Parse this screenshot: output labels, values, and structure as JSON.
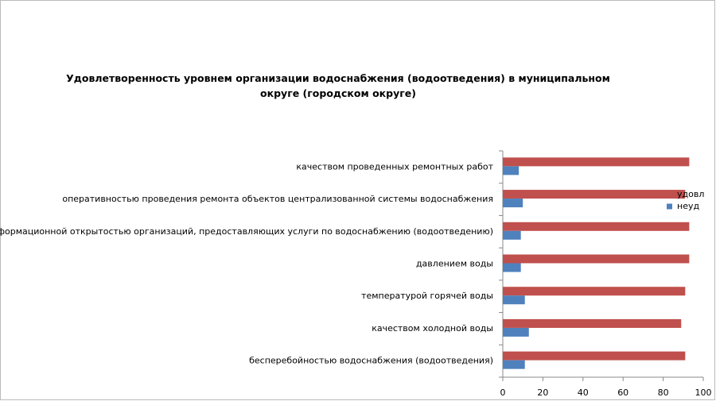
{
  "chart_data": {
    "type": "bar",
    "orientation": "horizontal",
    "title": "Удовлетворенность уровнем организации водоснабжения (водоотведения) в муниципальном округе (городском округе)",
    "categories": [
      "качеством проведенных ремонтных работ",
      "оперативностью проведения ремонта объектов централизованной системы водоснабжения",
      "информационной открытостью организаций, предоставляющих услуги по водоснабжению (водоотведению)",
      "давлением воды",
      "температурой горячей воды",
      "качеством холодной воды",
      "бесперебойностью водоснабжения (водоотведения)"
    ],
    "series": [
      {
        "name": "удовл",
        "color": "#c0504d",
        "values": [
          93,
          91,
          93,
          93,
          91,
          89,
          91
        ]
      },
      {
        "name": "неуд",
        "color": "#4f81bd",
        "values": [
          8,
          10,
          9,
          9,
          11,
          13,
          11
        ]
      }
    ],
    "xlim": [
      0,
      100
    ],
    "xticks": [
      0,
      20,
      40,
      60,
      80,
      100
    ],
    "grid": false,
    "legend": "right"
  }
}
